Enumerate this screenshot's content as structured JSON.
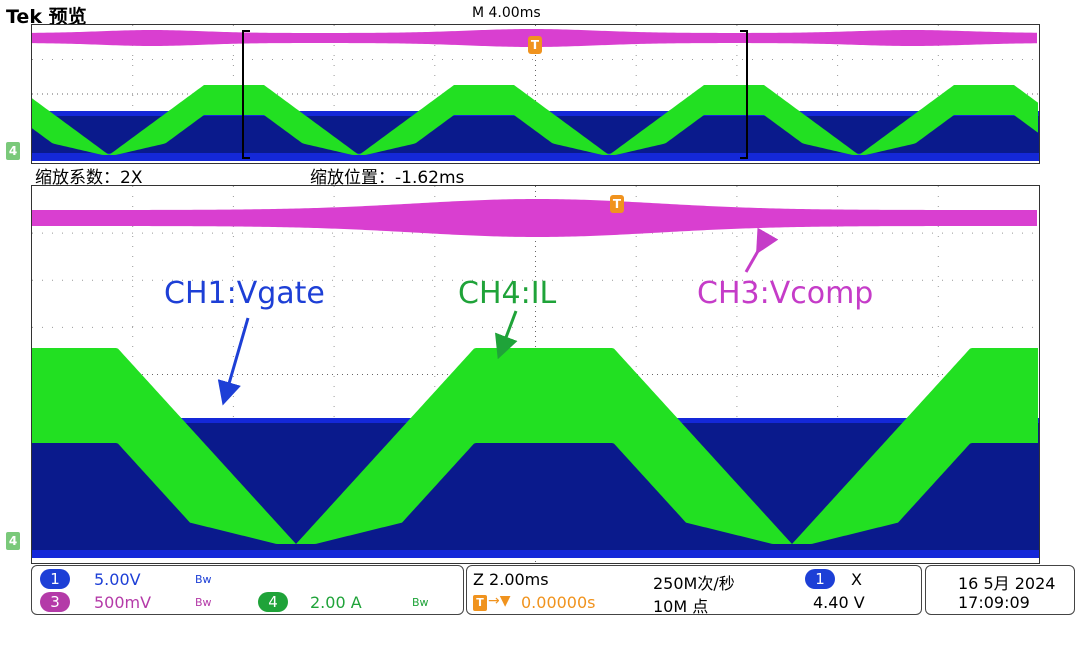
{
  "header": {
    "brand": "Tek 预览",
    "time_scale": "M 4.00ms"
  },
  "zoom": {
    "factor_label": "缩放系数：2X",
    "position_label": "缩放位置：-1.62ms"
  },
  "annotations": {
    "ch1": "CH1:Vgate",
    "ch4": "CH4:IL",
    "ch3": "CH3:Vcomp"
  },
  "trigger_marker": "T",
  "channel_markers": {
    "ch4": "4"
  },
  "channels": [
    {
      "num": "1",
      "scale": "5.00V",
      "bw": "Bw",
      "color": "#1d3fd6"
    },
    {
      "num": "3",
      "scale": "500mV",
      "bw": "Bw",
      "color": "#b43aa8"
    },
    {
      "num": "4",
      "scale": "2.00 A",
      "bw": "Bw",
      "color": "#1fa339"
    }
  ],
  "timebase": {
    "zoom": "Z 2.00ms",
    "sample_rate": "250M次/秒",
    "trigger_delay": "0.00000s",
    "record_length": "10M 点",
    "trigger_source": "1",
    "trigger_coupling": "X",
    "trigger_level": "4.40 V"
  },
  "datetime": {
    "date": "16 5月 2024",
    "time": "17:09:09"
  },
  "colors": {
    "ch1": "#0a1a8c",
    "ch1_bright": "#1428d8",
    "ch3": "#d93fd0",
    "ch4": "#22e022",
    "trigger": "#f0931e"
  }
}
